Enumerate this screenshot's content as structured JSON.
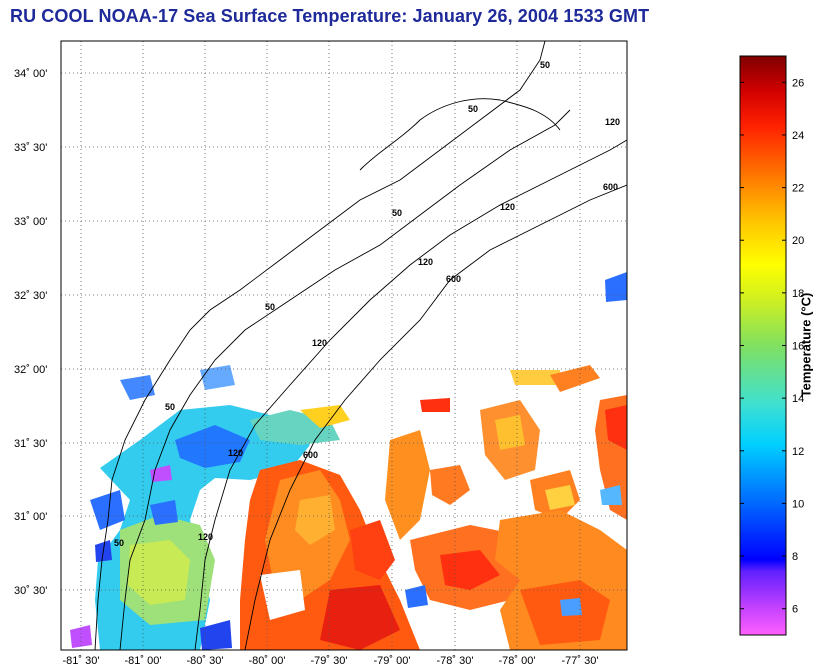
{
  "title": "RU COOL  NOAA-17  Sea Surface Temperature:  January 26, 2004 1533 GMT",
  "axes": {
    "lat_labels": [
      "34˚ 00'",
      "33˚ 30'",
      "33˚ 00'",
      "32˚ 30'",
      "32˚ 00'",
      "31˚ 30'",
      "31˚ 00'",
      "30˚ 30'"
    ],
    "lon_labels": [
      "-81˚ 30'",
      "-81˚ 00'",
      "-80˚ 30'",
      "-80˚ 00'",
      "-79˚ 30'",
      "-79˚ 00'",
      "-78˚ 30'",
      "-78˚ 00'",
      "-77˚ 30'"
    ],
    "lat_range": [
      30.22,
      34.22
    ],
    "lon_range": [
      -81.6,
      -77.1
    ],
    "grid": "dotted"
  },
  "contour_labels": [
    "50",
    "50",
    "50",
    "50",
    "50",
    "120",
    "120",
    "120",
    "120",
    "120",
    "600",
    "600",
    "600",
    "50",
    "120"
  ],
  "colorbar": {
    "label": "Temperature (°C)",
    "tick_labels": [
      "26",
      "24",
      "22",
      "20",
      "18",
      "16",
      "14",
      "12",
      "10",
      "8",
      "6"
    ],
    "range": [
      5,
      27
    ]
  },
  "colors": {
    "title": "#1f2a9a",
    "cold": "#ff00ff",
    "warm": "#800000"
  }
}
